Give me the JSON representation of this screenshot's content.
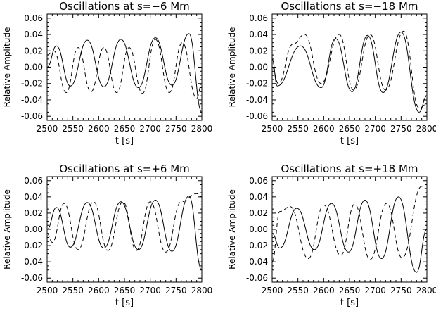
{
  "chart_data": [
    {
      "type": "line",
      "title": "Oscillations at s=−6 Mm",
      "xlabel": "t [s]",
      "ylabel": "Relative Amplitude",
      "xlim": [
        2500,
        2800
      ],
      "ylim": [
        -0.065,
        0.065
      ],
      "xticks": [
        2500,
        2550,
        2600,
        2650,
        2700,
        2750,
        2800
      ],
      "yticks": [
        -0.06,
        -0.04,
        -0.02,
        0.0,
        0.02,
        0.04,
        0.06
      ],
      "ytick_labels": [
        "-0.06",
        "-0.04",
        "-0.02",
        "0.00",
        "0.02",
        "0.04",
        "0.06"
      ],
      "grid": false,
      "series": [
        {
          "style": "solid",
          "color": "#000000",
          "x": [
            2500,
            2518,
            2545,
            2578,
            2610,
            2643,
            2677,
            2710,
            2742,
            2775,
            2800
          ],
          "y": [
            0.0,
            0.026,
            -0.023,
            0.033,
            -0.024,
            0.034,
            -0.025,
            0.036,
            -0.022,
            0.041,
            -0.055
          ]
        },
        {
          "style": "dashed",
          "color": "#000000",
          "x": [
            2500,
            2513,
            2537,
            2560,
            2585,
            2610,
            2635,
            2659,
            2685,
            2710,
            2737,
            2762,
            2790,
            2800
          ],
          "y": [
            0.015,
            0.02,
            -0.031,
            0.024,
            -0.03,
            0.024,
            -0.031,
            0.024,
            -0.032,
            0.034,
            -0.031,
            0.03,
            -0.038,
            -0.02
          ]
        }
      ]
    },
    {
      "type": "line",
      "title": "Oscillations at s=−18 Mm",
      "xlabel": "t [s]",
      "ylabel": "Relative Amplitude",
      "xlim": [
        2500,
        2800
      ],
      "ylim": [
        -0.065,
        0.065
      ],
      "xticks": [
        2500,
        2550,
        2600,
        2650,
        2700,
        2750,
        2800
      ],
      "yticks": [
        -0.06,
        -0.04,
        -0.02,
        0.0,
        0.02,
        0.04,
        0.06
      ],
      "ytick_labels": [
        "-0.06",
        "-0.04",
        "-0.02",
        "0.00",
        "0.02",
        "0.04",
        "0.06"
      ],
      "grid": false,
      "series": [
        {
          "style": "solid",
          "color": "#000000",
          "x": [
            2500,
            2510,
            2555,
            2595,
            2623,
            2655,
            2685,
            2715,
            2750,
            2785,
            2800
          ],
          "y": [
            0.01,
            -0.023,
            0.026,
            -0.025,
            0.035,
            -0.03,
            0.039,
            -0.031,
            0.043,
            -0.055,
            -0.035
          ]
        },
        {
          "style": "dashed",
          "color": "#000000",
          "x": [
            2500,
            2512,
            2540,
            2563,
            2595,
            2630,
            2658,
            2690,
            2720,
            2755,
            2785,
            2800
          ],
          "y": [
            0.0,
            -0.02,
            0.028,
            0.04,
            -0.02,
            0.04,
            -0.028,
            0.04,
            -0.028,
            0.044,
            -0.05,
            -0.045
          ]
        }
      ]
    },
    {
      "type": "line",
      "title": "Oscillations at s=+6 Mm",
      "xlabel": "t [s]",
      "ylabel": "Relative Amplitude",
      "xlim": [
        2500,
        2800
      ],
      "ylim": [
        -0.065,
        0.065
      ],
      "xticks": [
        2500,
        2550,
        2600,
        2650,
        2700,
        2750,
        2800
      ],
      "yticks": [
        -0.06,
        -0.04,
        -0.02,
        0.0,
        0.02,
        0.04,
        0.06
      ],
      "ytick_labels": [
        "-0.06",
        "-0.04",
        "-0.02",
        "0.00",
        "0.02",
        "0.04",
        "0.06"
      ],
      "grid": false,
      "series": [
        {
          "style": "solid",
          "color": "#000000",
          "x": [
            2500,
            2518,
            2545,
            2578,
            2610,
            2643,
            2677,
            2710,
            2742,
            2775,
            2800
          ],
          "y": [
            0.0,
            0.027,
            -0.022,
            0.033,
            -0.023,
            0.034,
            -0.025,
            0.036,
            -0.027,
            0.041,
            -0.05
          ]
        },
        {
          "style": "dashed",
          "color": "#000000",
          "x": [
            2500,
            2510,
            2533,
            2560,
            2590,
            2618,
            2647,
            2673,
            2700,
            2730,
            2760,
            2790,
            2800
          ],
          "y": [
            -0.005,
            -0.016,
            0.032,
            -0.025,
            0.034,
            -0.026,
            0.034,
            -0.026,
            0.034,
            -0.028,
            0.034,
            0.044,
            0.04
          ]
        }
      ]
    },
    {
      "type": "line",
      "title": "Oscillations at s=+18 Mm",
      "xlabel": "t [s]",
      "ylabel": "Relative Amplitude",
      "xlim": [
        2500,
        2800
      ],
      "ylim": [
        -0.065,
        0.065
      ],
      "xticks": [
        2500,
        2550,
        2600,
        2650,
        2700,
        2750,
        2800
      ],
      "yticks": [
        -0.06,
        -0.04,
        -0.02,
        0.0,
        0.02,
        0.04,
        0.06
      ],
      "ytick_labels": [
        "-0.06",
        "-0.04",
        "-0.02",
        "0.00",
        "0.02",
        "0.04",
        "0.06"
      ],
      "grid": false,
      "series": [
        {
          "style": "solid",
          "color": "#000000",
          "x": [
            2500,
            2515,
            2548,
            2582,
            2615,
            2648,
            2680,
            2712,
            2745,
            2780,
            2800
          ],
          "y": [
            -0.005,
            -0.023,
            0.026,
            -0.025,
            0.032,
            -0.028,
            0.036,
            -0.036,
            0.04,
            -0.053,
            0.0
          ]
        },
        {
          "style": "dashed",
          "color": "#000000",
          "x": [
            2500,
            2515,
            2535,
            2570,
            2600,
            2633,
            2660,
            2690,
            2722,
            2752,
            2790,
            2800
          ],
          "y": [
            -0.04,
            0.022,
            0.028,
            -0.036,
            0.03,
            -0.032,
            0.031,
            -0.037,
            0.032,
            -0.035,
            0.053,
            0.05
          ]
        }
      ]
    }
  ]
}
